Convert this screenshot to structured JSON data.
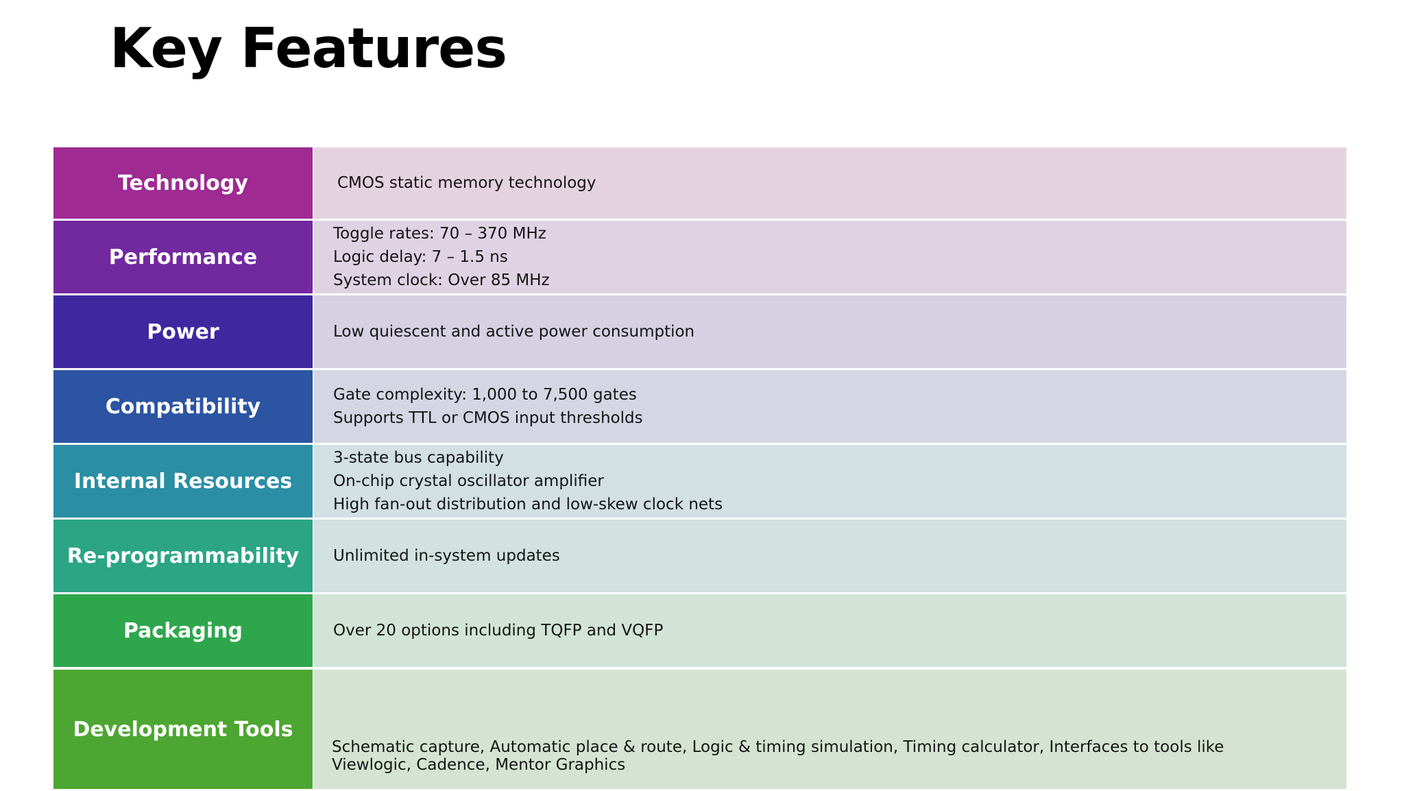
{
  "title": "Key Features",
  "rows": [
    {
      "label": "Technology",
      "label_color": "#9E2A92",
      "bg_color": "#E4D3DF",
      "lines": [
        "CMOS static memory technology"
      ]
    },
    {
      "label": "Performance",
      "label_color": "#72299F",
      "bg_color": "#DFD2E2",
      "lines": [
        "Toggle rates: 70 – 370 MHz",
        "Logic delay: 7 – 1.5 ns",
        "System clock: Over 85 MHz"
      ]
    },
    {
      "label": "Power",
      "label_color": "#3D28A0",
      "bg_color": "#D5D1E3",
      "lines": [
        "Low quiescent and active power consumption"
      ]
    },
    {
      "label": "Compatibility",
      "label_color": "#2C54A2",
      "bg_color": "#D4D7E3",
      "lines": [
        "Gate complexity: 1,000 to 7,500 gates",
        "Supports TTL or CMOS input thresholds"
      ]
    },
    {
      "label": "Internal Resources",
      "label_color": "#2A8EA4",
      "bg_color": "#D2DFE3",
      "lines": [
        "3-state bus capability",
        "On-chip crystal oscillator amplifier",
        "High fan-out distribution and low-skew clock nets"
      ]
    },
    {
      "label": "Re-programmability",
      "label_color": "#2BA584",
      "bg_color": "#D2E2DE",
      "lines": [
        "Unlimited in-system updates"
      ]
    },
    {
      "label": "Packaging",
      "label_color": "#2EA64C",
      "bg_color": "#D2E4D7",
      "lines": [
        "Over 20 options including TQFP and VQFP"
      ]
    },
    {
      "label": "Development Tools",
      "label_color": "#4DA631",
      "bg_color": "#D5E4D2",
      "lines": [
        "Schematic capture, Automatic place & route, Logic & timing simulation, Timing calculator, Interfaces to tools like Viewlogic, Cadence, Mentor Graphics"
      ]
    }
  ]
}
